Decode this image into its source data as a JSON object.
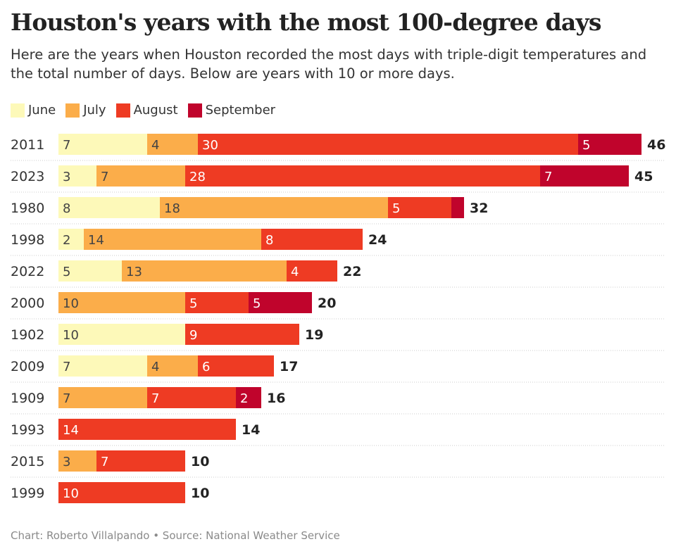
{
  "title": "Houston's years with the most 100-degree days",
  "subtitle": "Here are the years when Houston recorded the most days with triple-digit temperatures and the total number of days. Below are years with 10 or more days.",
  "footer": "Chart: Roberto Villalpando • Source: National Weather Service",
  "chart_data": {
    "type": "bar",
    "orientation": "horizontal",
    "stacked": true,
    "legend_position": "top-left",
    "categories": [
      "2011",
      "2023",
      "1980",
      "1998",
      "2022",
      "2000",
      "1902",
      "2009",
      "1909",
      "1993",
      "2015",
      "1999"
    ],
    "series": [
      {
        "name": "June",
        "color": "#fdf9b9",
        "values": [
          7,
          3,
          8,
          2,
          5,
          0,
          10,
          7,
          0,
          0,
          0,
          0
        ]
      },
      {
        "name": "July",
        "color": "#fbad4a",
        "values": [
          4,
          7,
          18,
          14,
          13,
          10,
          0,
          4,
          7,
          0,
          3,
          0
        ]
      },
      {
        "name": "August",
        "color": "#ee3b23",
        "values": [
          30,
          28,
          5,
          8,
          4,
          5,
          9,
          6,
          7,
          14,
          7,
          10
        ]
      },
      {
        "name": "September",
        "color": "#c0042c",
        "values": [
          5,
          7,
          1,
          0,
          0,
          5,
          0,
          0,
          2,
          0,
          0,
          0
        ]
      }
    ],
    "totals": [
      46,
      45,
      32,
      24,
      22,
      20,
      19,
      17,
      16,
      14,
      10,
      10
    ]
  }
}
